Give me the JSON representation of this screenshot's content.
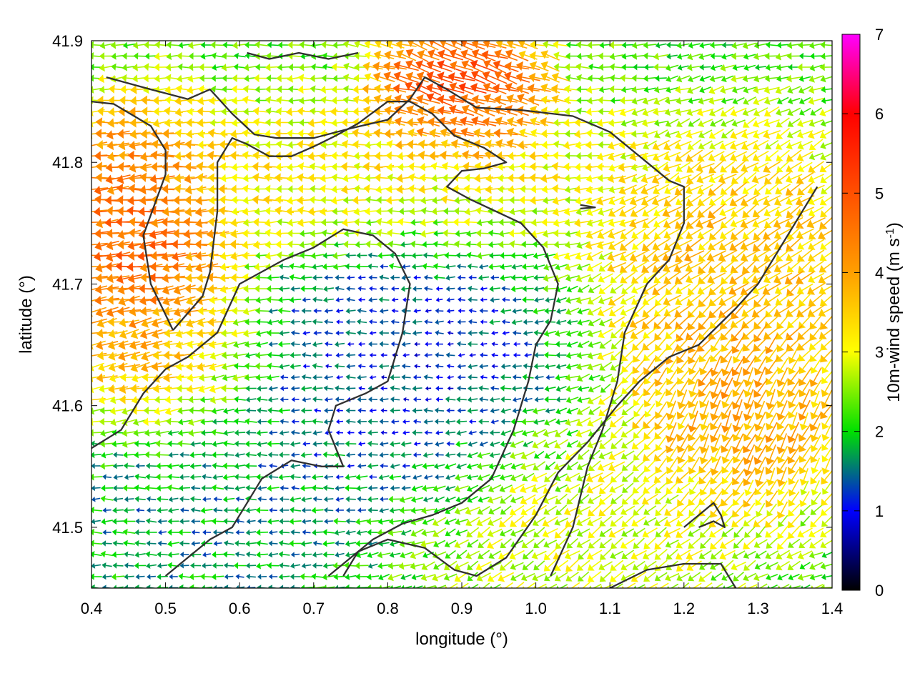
{
  "chart_data": {
    "type": "vector-field",
    "title": "",
    "xlabel": "longitude (°)",
    "ylabel": "latitude (°)",
    "xlim": [
      0.4,
      1.4
    ],
    "ylim": [
      41.45,
      41.9
    ],
    "xticks": [
      "0.4",
      "0.5",
      "0.6",
      "0.7",
      "0.8",
      "0.9",
      "1.0",
      "1.1",
      "1.2",
      "1.3",
      "1.4"
    ],
    "yticks": [
      "41.5",
      "41.6",
      "41.7",
      "41.8",
      "41.9"
    ],
    "grid": false,
    "colorbar": {
      "label": "10m-wind speed (m s",
      "label_sup": "-1",
      "label_end": ")",
      "range": [
        0,
        7
      ],
      "ticks": [
        "0",
        "1",
        "2",
        "3",
        "4",
        "5",
        "6",
        "7"
      ],
      "colors": [
        "#000000",
        "#0000ff",
        "#00e000",
        "#ffff00",
        "#ff8000",
        "#ff0000",
        "#ff00ff"
      ]
    },
    "wind_regions": [
      {
        "lon": [
          0.4,
          0.52
        ],
        "lat": [
          41.68,
          41.8
        ],
        "speed": 5.2,
        "dir_deg": 185
      },
      {
        "lon": [
          0.4,
          0.55
        ],
        "lat": [
          41.6,
          41.68
        ],
        "speed": 4.0,
        "dir_deg": 195
      },
      {
        "lon": [
          0.55,
          1.0
        ],
        "lat": [
          41.75,
          41.82
        ],
        "speed": 3.4,
        "dir_deg": 180
      },
      {
        "lon": [
          0.85,
          0.95
        ],
        "lat": [
          41.83,
          41.88
        ],
        "speed": 5.5,
        "dir_deg": 160
      },
      {
        "lon": [
          0.7,
          0.95
        ],
        "lat": [
          41.55,
          41.72
        ],
        "speed": 1.0,
        "dir_deg": 180
      },
      {
        "lon": [
          1.15,
          1.4
        ],
        "lat": [
          41.65,
          41.78
        ],
        "speed": 3.8,
        "dir_deg": 215
      },
      {
        "lon": [
          1.2,
          1.35
        ],
        "lat": [
          41.55,
          41.65
        ],
        "speed": 4.2,
        "dir_deg": 250
      },
      {
        "lon": [
          0.4,
          0.7
        ],
        "lat": [
          41.45,
          41.6
        ],
        "speed": 1.6,
        "dir_deg": 180
      },
      {
        "lon": [
          0.9,
          1.2
        ],
        "lat": [
          41.45,
          41.55
        ],
        "speed": 3.0,
        "dir_deg": 215
      }
    ],
    "contours": [
      [
        [
          0.42,
          41.87
        ],
        [
          0.48,
          41.86
        ],
        [
          0.53,
          41.852
        ],
        [
          0.56,
          41.86
        ],
        [
          0.59,
          41.84
        ],
        [
          0.62,
          41.823
        ],
        [
          0.65,
          41.82
        ],
        [
          0.7,
          41.82
        ],
        [
          0.75,
          41.828
        ],
        [
          0.8,
          41.835
        ],
        [
          0.83,
          41.852
        ],
        [
          0.85,
          41.87
        ],
        [
          0.88,
          41.86
        ],
        [
          0.92,
          41.845
        ],
        [
          0.98,
          41.843
        ],
        [
          1.05,
          41.838
        ],
        [
          1.1,
          41.825
        ],
        [
          1.15,
          41.8
        ],
        [
          1.18,
          41.785
        ],
        [
          1.2,
          41.78
        ],
        [
          1.2,
          41.75
        ],
        [
          1.18,
          41.72
        ],
        [
          1.15,
          41.7
        ],
        [
          1.12,
          41.66
        ],
        [
          1.11,
          41.62
        ],
        [
          1.09,
          41.58
        ],
        [
          1.07,
          41.55
        ],
        [
          1.05,
          41.5
        ],
        [
          1.02,
          41.46
        ]
      ],
      [
        [
          0.4,
          41.85
        ],
        [
          0.43,
          41.848
        ],
        [
          0.48,
          41.83
        ],
        [
          0.5,
          41.81
        ],
        [
          0.5,
          41.79
        ],
        [
          0.47,
          41.74
        ],
        [
          0.48,
          41.7
        ],
        [
          0.51,
          41.662
        ]
      ],
      [
        [
          0.51,
          41.662
        ],
        [
          0.55,
          41.69
        ],
        [
          0.56,
          41.71
        ],
        [
          0.57,
          41.76
        ],
        [
          0.57,
          41.8
        ],
        [
          0.59,
          41.82
        ],
        [
          0.61,
          41.815
        ],
        [
          0.64,
          41.805
        ],
        [
          0.67,
          41.805
        ],
        [
          0.7,
          41.813
        ],
        [
          0.73,
          41.822
        ],
        [
          0.76,
          41.832
        ],
        [
          0.8,
          41.85
        ],
        [
          0.83,
          41.85
        ],
        [
          0.86,
          41.84
        ],
        [
          0.89,
          41.822
        ],
        [
          0.93,
          41.812
        ],
        [
          0.96,
          41.8
        ],
        [
          0.93,
          41.795
        ],
        [
          0.9,
          41.793
        ],
        [
          0.88,
          41.78
        ],
        [
          0.91,
          41.77
        ],
        [
          0.98,
          41.75
        ],
        [
          1.01,
          41.73
        ],
        [
          1.03,
          41.7
        ],
        [
          1.02,
          41.67
        ],
        [
          1.0,
          41.65
        ],
        [
          0.99,
          41.62
        ],
        [
          0.97,
          41.58
        ],
        [
          0.94,
          41.54
        ],
        [
          0.9,
          41.52
        ],
        [
          0.86,
          41.51
        ],
        [
          0.82,
          41.503
        ],
        [
          0.78,
          41.49
        ],
        [
          0.74,
          41.47
        ],
        [
          0.72,
          41.46
        ]
      ],
      [
        [
          0.4,
          41.565
        ],
        [
          0.44,
          41.58
        ],
        [
          0.47,
          41.61
        ],
        [
          0.5,
          41.63
        ],
        [
          0.53,
          41.64
        ],
        [
          0.57,
          41.66
        ],
        [
          0.6,
          41.7
        ],
        [
          0.63,
          41.71
        ],
        [
          0.66,
          41.72
        ],
        [
          0.7,
          41.73
        ],
        [
          0.74,
          41.745
        ],
        [
          0.78,
          41.74
        ],
        [
          0.81,
          41.725
        ],
        [
          0.83,
          41.7
        ],
        [
          0.82,
          41.66
        ],
        [
          0.8,
          41.62
        ],
        [
          0.77,
          41.61
        ],
        [
          0.73,
          41.6
        ],
        [
          0.72,
          41.58
        ],
        [
          0.74,
          41.55
        ],
        [
          0.71,
          41.55
        ],
        [
          0.67,
          41.555
        ],
        [
          0.63,
          41.54
        ],
        [
          0.61,
          41.52
        ],
        [
          0.59,
          41.5
        ],
        [
          0.56,
          41.49
        ],
        [
          0.53,
          41.475
        ],
        [
          0.5,
          41.46
        ]
      ],
      [
        [
          0.74,
          41.46
        ],
        [
          0.76,
          41.48
        ],
        [
          0.8,
          41.49
        ],
        [
          0.85,
          41.483
        ],
        [
          0.89,
          41.465
        ],
        [
          0.92,
          41.46
        ],
        [
          0.96,
          41.475
        ],
        [
          1.0,
          41.51
        ],
        [
          1.03,
          41.545
        ],
        [
          1.07,
          41.57
        ],
        [
          1.11,
          41.6
        ],
        [
          1.14,
          41.62
        ],
        [
          1.18,
          41.64
        ],
        [
          1.22,
          41.65
        ],
        [
          1.27,
          41.68
        ],
        [
          1.3,
          41.7
        ],
        [
          1.33,
          41.73
        ],
        [
          1.36,
          41.76
        ],
        [
          1.38,
          41.78
        ]
      ],
      [
        [
          1.2,
          41.5
        ],
        [
          1.22,
          41.51
        ],
        [
          1.24,
          41.52
        ],
        [
          1.25,
          41.51
        ],
        [
          1.255,
          41.5
        ],
        [
          1.24,
          41.505
        ],
        [
          1.22,
          41.5
        ]
      ],
      [
        [
          1.06,
          41.765
        ],
        [
          1.08,
          41.763
        ],
        [
          1.06,
          41.762
        ]
      ],
      [
        [
          1.1,
          41.45
        ],
        [
          1.15,
          41.465
        ],
        [
          1.2,
          41.47
        ],
        [
          1.25,
          41.47
        ],
        [
          1.27,
          41.45
        ]
      ],
      [
        [
          0.61,
          41.89
        ],
        [
          0.64,
          41.885
        ],
        [
          0.68,
          41.89
        ],
        [
          0.72,
          41.885
        ],
        [
          0.76,
          41.89
        ]
      ]
    ]
  }
}
